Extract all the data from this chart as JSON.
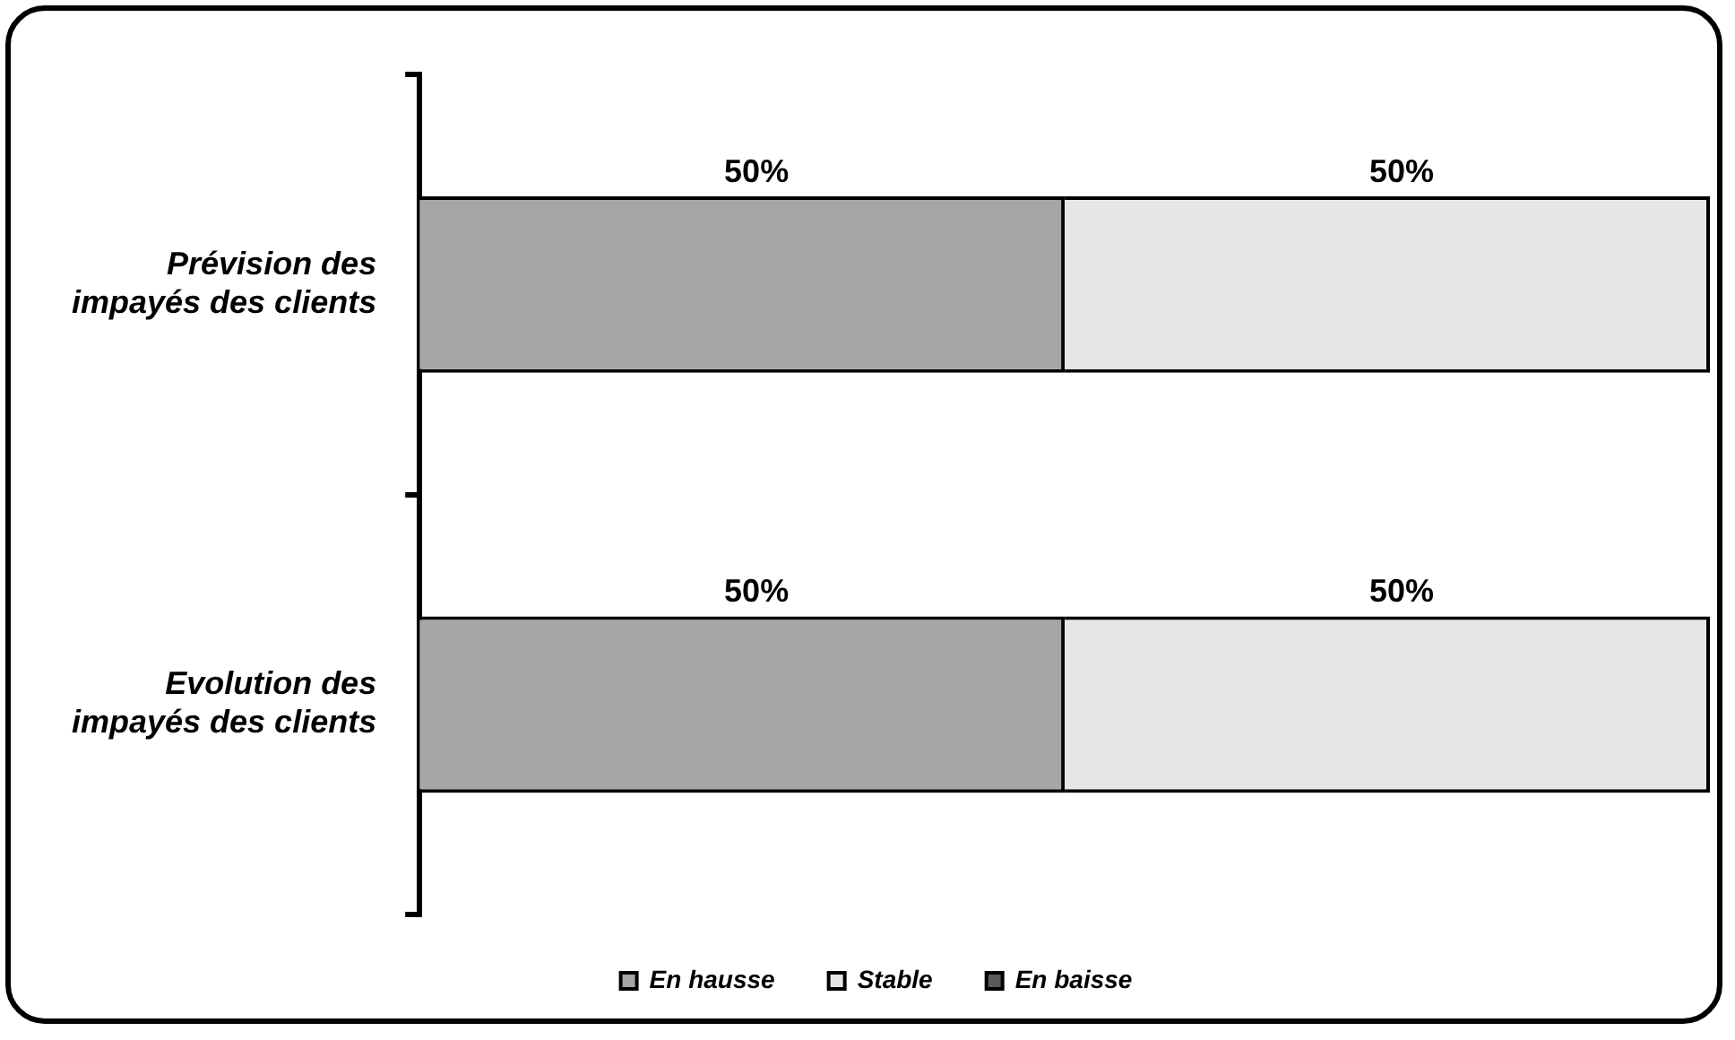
{
  "chart_data": {
    "type": "bar",
    "orientation": "horizontal",
    "stacked": true,
    "categories": [
      "Prévision des impayés des clients",
      "Evolution des impayés des clients"
    ],
    "series": [
      {
        "name": "En hausse",
        "color": "#a6a6a6",
        "values": [
          50,
          50
        ],
        "value_labels": [
          "50%",
          "50%"
        ]
      },
      {
        "name": "Stable",
        "color": "#e6e6e6",
        "values": [
          50,
          50
        ],
        "value_labels": [
          "50%",
          "50%"
        ]
      },
      {
        "name": "En baisse",
        "color": "#595959",
        "values": [
          null,
          null
        ]
      }
    ],
    "tick_labels": "y",
    "legend": "bottom"
  }
}
